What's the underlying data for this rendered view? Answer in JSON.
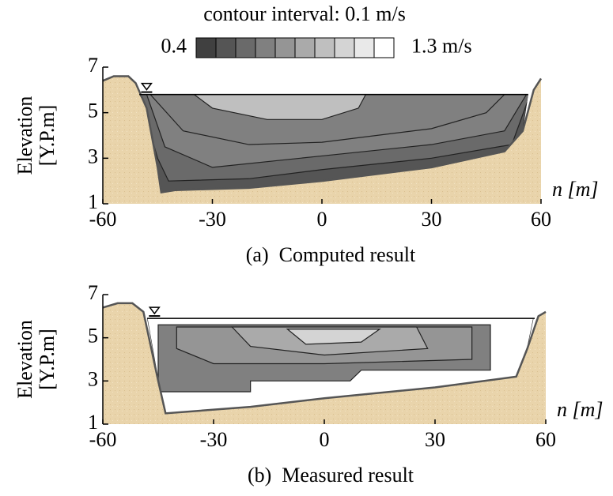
{
  "chart_data": [
    {
      "type": "contour",
      "colorbar": {
        "title": "contour interval: 0.1 m/s",
        "levels": [
          0.4,
          0.5,
          0.6,
          0.7,
          0.8,
          0.9,
          1.0,
          1.1,
          1.2,
          1.3
        ],
        "colors": [
          "#404040",
          "#555555",
          "#6a6a6a",
          "#808080",
          "#959595",
          "#aaaaaa",
          "#bfbfbf",
          "#d4d4d4",
          "#e9e9e9",
          "#ffffff"
        ],
        "ticks": [
          0.4,
          {
            "value": 1.3,
            "label": "1.3 m/s"
          }
        ]
      },
      "ylabel": [
        "Elevation",
        "[Y.P.m]"
      ],
      "xlabel": "n [m]",
      "caption": "(a)  Computed result",
      "xlim": [
        -60,
        60
      ],
      "xticks": [
        -60,
        -30,
        0,
        30,
        60
      ],
      "ylim": [
        1,
        7
      ],
      "yticks": [
        1,
        3,
        5,
        7
      ]
    },
    {
      "type": "contour",
      "ylabel": [
        "Elevation",
        "[Y.P.m]"
      ],
      "xlabel": "n [m]",
      "caption": "(b)  Measured result",
      "xlim": [
        -60,
        60
      ],
      "xticks": [
        -60,
        -30,
        0,
        30,
        60
      ],
      "ylim": [
        1,
        7
      ],
      "yticks": [
        1,
        3,
        5,
        7
      ]
    }
  ]
}
